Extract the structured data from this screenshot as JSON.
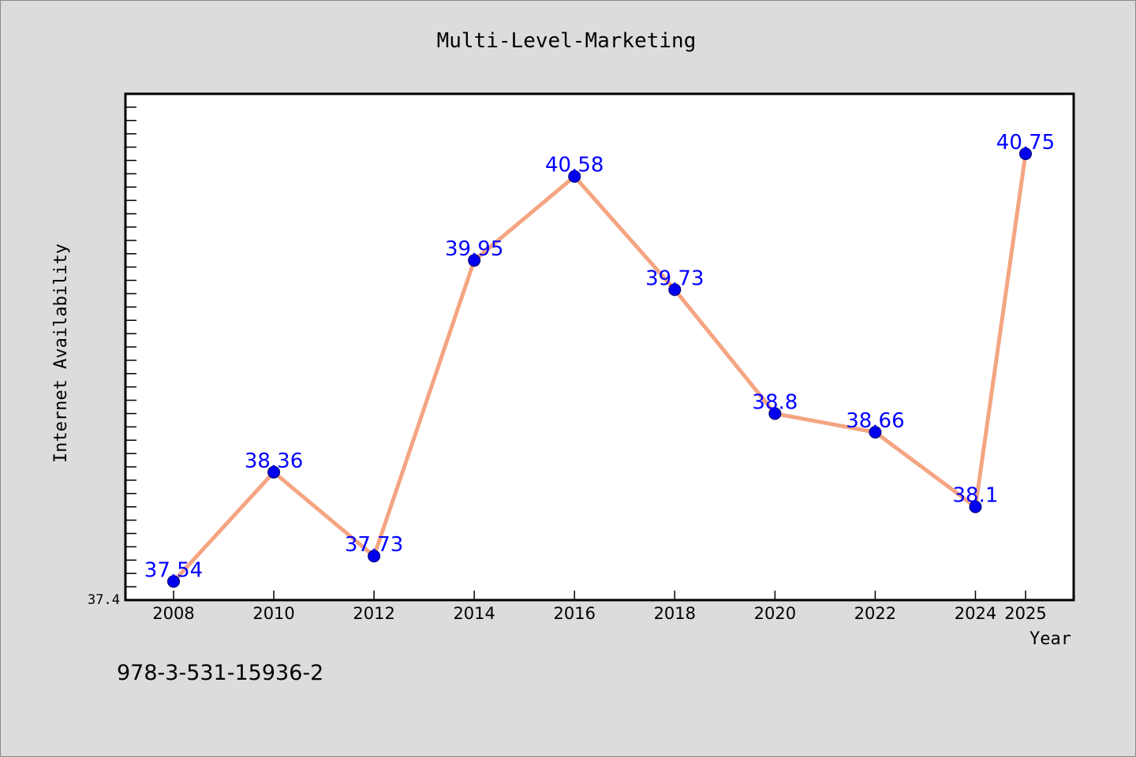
{
  "chart_data": {
    "type": "line",
    "title": "Multi-Level-Marketing",
    "xlabel": "Year",
    "ylabel": "Internet Availability",
    "x": [
      "2008",
      "2010",
      "2012",
      "2014",
      "2016",
      "2018",
      "2020",
      "2022",
      "2024",
      "2025"
    ],
    "series": [
      {
        "values": [
          37.54,
          38.36,
          37.73,
          39.95,
          40.58,
          39.73,
          38.8,
          38.66,
          38.1,
          40.75
        ],
        "labels": [
          "37.54",
          "38.36",
          "37.73",
          "39.95",
          "40.58",
          "39.73",
          "38.8",
          "38.66",
          "38.1",
          "40.75"
        ]
      }
    ],
    "y_tick_label": "37.4",
    "ylim": [
      37.4,
      41.2
    ],
    "grid": false,
    "line_color": "#f4a582",
    "marker_color": "#0000ee",
    "label_color": "#0000ff"
  },
  "footer": {
    "isbn": "978-3-531-15936-2"
  }
}
